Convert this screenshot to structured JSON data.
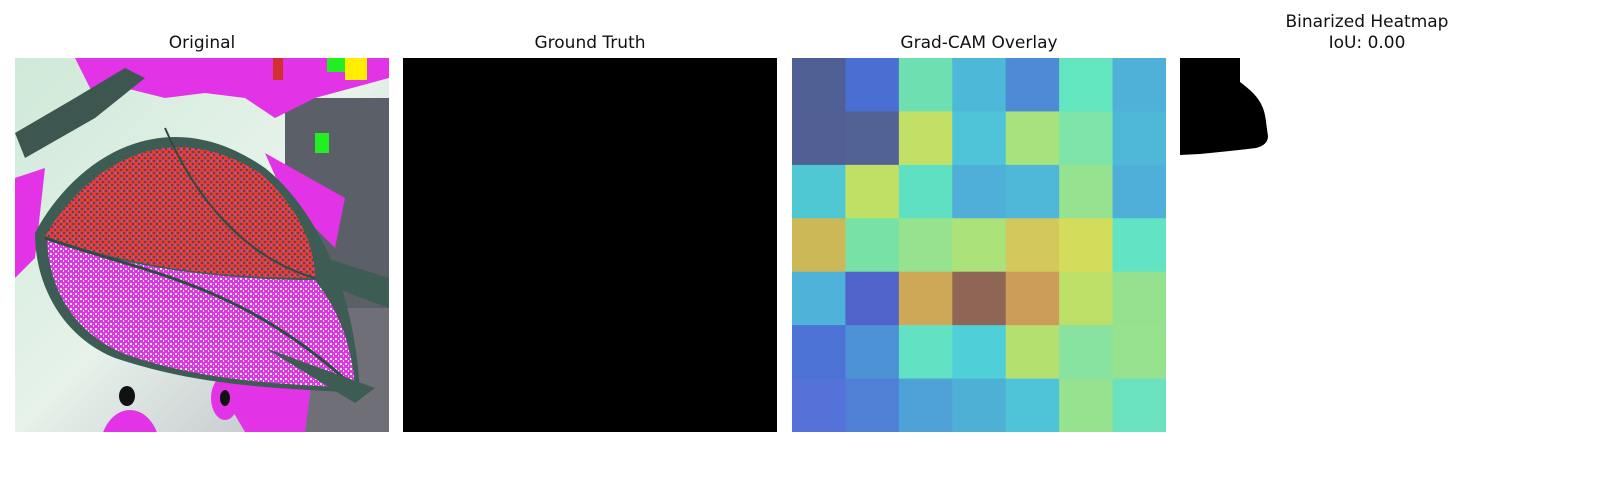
{
  "panels": [
    {
      "title": "Original"
    },
    {
      "title": "Ground Truth"
    },
    {
      "title": "Grad-CAM Overlay"
    },
    {
      "title": "Binarized Heatmap",
      "subtitle": "IoU: 0.00"
    }
  ],
  "ground_truth_color": "#000000",
  "gradcam": {
    "rows": 7,
    "cols": 7,
    "colors": [
      [
        "#4f5f94",
        "#4b6ed3",
        "#6edfb0",
        "#4db8d8",
        "#4f8ad6",
        "#62e6c0",
        "#4fb0d8"
      ],
      [
        "#515f94",
        "#526294",
        "#c2e066",
        "#4fc4d8",
        "#a8e27d",
        "#7fe4aa",
        "#4fb8d8"
      ],
      [
        "#4fc8d4",
        "#bfe065",
        "#60e0c2",
        "#4fafd8",
        "#4fb8d8",
        "#95e290",
        "#4fafd8"
      ],
      [
        "#cdb858",
        "#78e2a6",
        "#96e28e",
        "#ace27a",
        "#d2c85c",
        "#d4dc5c",
        "#62e4c4"
      ],
      [
        "#4fb2d8",
        "#5063cb",
        "#cea857",
        "#8f6555",
        "#cc9d59",
        "#bee069",
        "#94e28f"
      ],
      [
        "#4c72d6",
        "#4c90d6",
        "#62e2c2",
        "#4fd0d8",
        "#b4e070",
        "#88e2a0",
        "#96e28e"
      ],
      [
        "#5472d8",
        "#4f80d6",
        "#4fa2d8",
        "#4fb0d6",
        "#4fc4d8",
        "#96e28e",
        "#6ae2c0"
      ]
    ]
  },
  "colors": {
    "mask_foreground": "#000000",
    "background": "#ffffff"
  }
}
